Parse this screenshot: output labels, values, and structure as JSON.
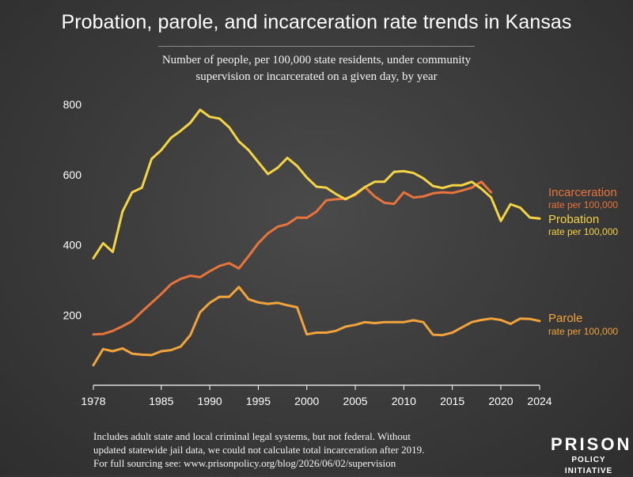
{
  "title": "Probation, parole, and incarceration rate trends in Kansas",
  "subtitle_line1": "Number of people, per 100,000 state residents, under community",
  "subtitle_line2": "supervision or incarcerated on a given day, by year",
  "footnote_line1": "Includes adult state and local criminal legal systems, but not federal. Without",
  "footnote_line2": "updated statewide jail data, we could not calculate total incarceration after 2019.",
  "footnote_line3": "For full sourcing see: www.prisonpolicy.org/blog/2026/06/02/supervision",
  "logo": {
    "main": "PRISON",
    "sub": "POLICY INITIATIVE"
  },
  "chart_data": {
    "type": "line",
    "x_tick_labels": [
      "1978",
      "1985",
      "1990",
      "1995",
      "2000",
      "2005",
      "2010",
      "2015",
      "2020",
      "2024"
    ],
    "y_tick_labels": [
      "200",
      "400",
      "600",
      "800"
    ],
    "xlim": [
      1978,
      2024
    ],
    "ylim": [
      0,
      850
    ],
    "grid": false,
    "legend": "direct labels at right end",
    "series": [
      {
        "name": "Incarceration",
        "label_sub": "rate per 100,000",
        "color": "#e8743b",
        "x": [
          1978,
          1979,
          1980,
          1981,
          1982,
          1983,
          1984,
          1985,
          1986,
          1987,
          1988,
          1989,
          1990,
          1991,
          1992,
          1993,
          1994,
          1995,
          1996,
          1997,
          1998,
          1999,
          2000,
          2001,
          2002,
          2003,
          2004,
          2005,
          2006,
          2007,
          2008,
          2009,
          2010,
          2011,
          2012,
          2013,
          2014,
          2015,
          2016,
          2017,
          2018,
          2019
        ],
        "y": [
          145,
          146,
          155,
          168,
          183,
          210,
          235,
          260,
          288,
          303,
          312,
          308,
          325,
          340,
          348,
          333,
          368,
          405,
          433,
          452,
          459,
          478,
          477,
          495,
          527,
          530,
          532,
          542,
          565,
          538,
          520,
          517,
          550,
          535,
          538,
          547,
          550,
          548,
          555,
          563,
          580,
          550
        ]
      },
      {
        "name": "Probation",
        "label_sub": "rate per 100,000",
        "color": "#f5d444",
        "x": [
          1978,
          1979,
          1980,
          1981,
          1982,
          1983,
          1984,
          1985,
          1986,
          1987,
          1988,
          1989,
          1990,
          1991,
          1992,
          1993,
          1994,
          1995,
          1996,
          1997,
          1998,
          1999,
          2000,
          2001,
          2002,
          2003,
          2004,
          2005,
          2006,
          2007,
          2008,
          2009,
          2010,
          2011,
          2012,
          2013,
          2014,
          2015,
          2016,
          2017,
          2018,
          2019,
          2020,
          2021,
          2022,
          2023,
          2024
        ],
        "y": [
          362,
          405,
          380,
          495,
          550,
          563,
          645,
          670,
          705,
          725,
          748,
          785,
          765,
          760,
          735,
          695,
          670,
          636,
          602,
          620,
          648,
          625,
          592,
          566,
          563,
          545,
          530,
          545,
          565,
          580,
          580,
          608,
          610,
          605,
          590,
          568,
          562,
          570,
          570,
          580,
          560,
          535,
          468,
          516,
          506,
          478,
          475
        ]
      },
      {
        "name": "Parole",
        "label_sub": "rate per 100,000",
        "color": "#f2a33a",
        "x": [
          1978,
          1979,
          1980,
          1981,
          1982,
          1983,
          1984,
          1985,
          1986,
          1987,
          1988,
          1989,
          1990,
          1991,
          1992,
          1993,
          1994,
          1995,
          1996,
          1997,
          1998,
          1999,
          2000,
          2001,
          2002,
          2003,
          2004,
          2005,
          2006,
          2007,
          2008,
          2009,
          2010,
          2011,
          2012,
          2013,
          2014,
          2015,
          2016,
          2017,
          2018,
          2019,
          2020,
          2021,
          2022,
          2023,
          2024
        ],
        "y": [
          57,
          103,
          97,
          105,
          90,
          87,
          86,
          97,
          100,
          110,
          143,
          208,
          235,
          252,
          252,
          280,
          245,
          236,
          232,
          235,
          228,
          222,
          145,
          150,
          150,
          155,
          167,
          172,
          180,
          177,
          180,
          180,
          180,
          185,
          180,
          144,
          143,
          150,
          165,
          180,
          186,
          190,
          186,
          175,
          190,
          189,
          183
        ]
      }
    ]
  }
}
